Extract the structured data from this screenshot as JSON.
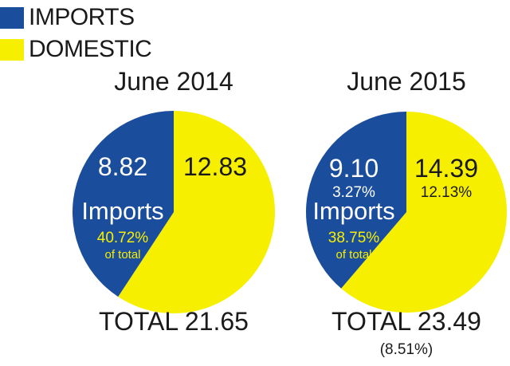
{
  "legend": [
    {
      "label": "IMPORTS",
      "color": "#1a4d9c"
    },
    {
      "label": "DOMESTIC",
      "color": "#f7ef00"
    }
  ],
  "chart_data": [
    {
      "type": "pie",
      "title": "June 2014",
      "slices": [
        {
          "name": "IMPORTS",
          "value": 8.82,
          "label_lines": [
            "8.82",
            "Imports",
            "40.72%",
            "of total"
          ]
        },
        {
          "name": "DOMESTIC",
          "value": 12.83,
          "label_lines": [
            "12.83"
          ]
        }
      ],
      "total_label": "TOTAL 21.65",
      "total_change": ""
    },
    {
      "type": "pie",
      "title": "June 2015",
      "slices": [
        {
          "name": "IMPORTS",
          "value": 9.1,
          "label_lines": [
            "9.10",
            "3.27%",
            "Imports",
            "38.75%",
            "of total"
          ]
        },
        {
          "name": "DOMESTIC",
          "value": 14.39,
          "label_lines": [
            "14.39",
            "12.13%"
          ]
        }
      ],
      "total_label": "TOTAL 23.49",
      "total_change": "(8.51%)"
    }
  ]
}
